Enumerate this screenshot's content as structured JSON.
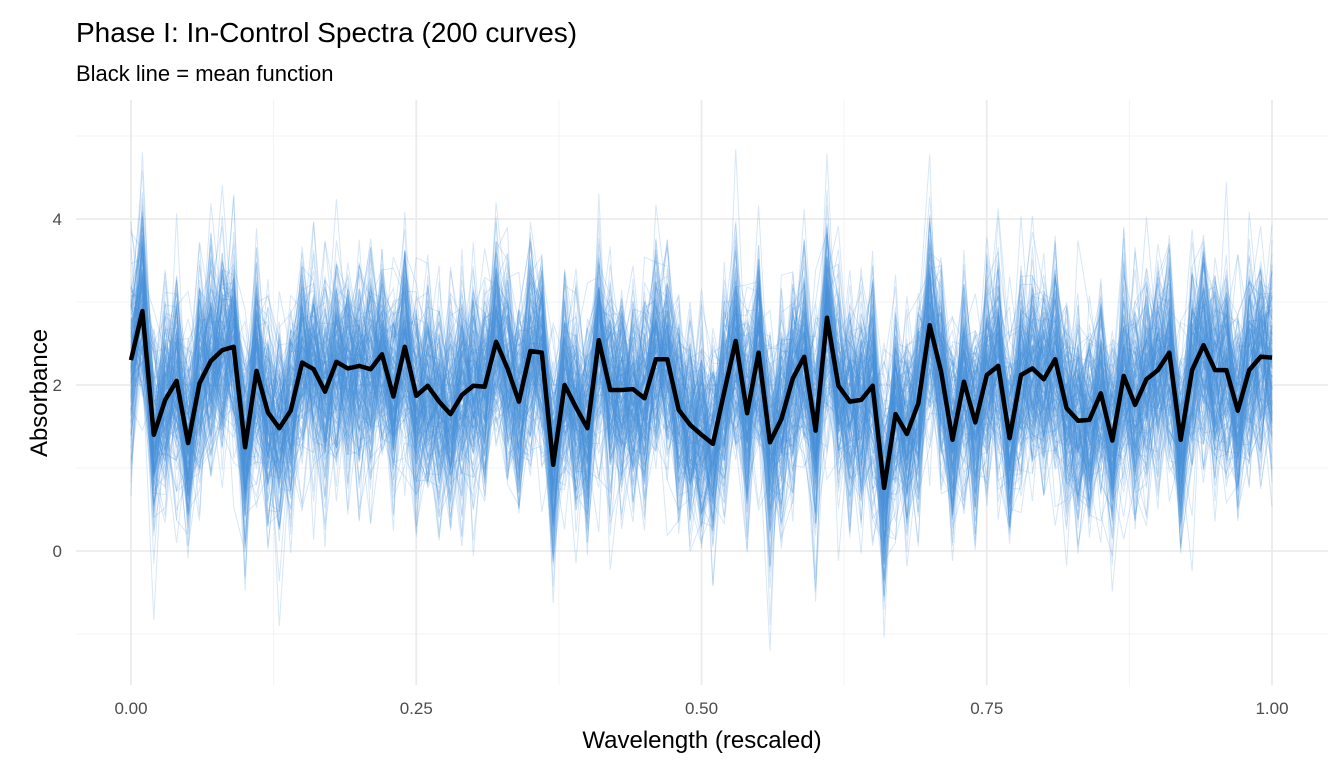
{
  "chart_data": {
    "type": "line",
    "title": "Phase I: In-Control Spectra (200 curves)",
    "subtitle": "Black line = mean function",
    "xlabel": "Wavelength (rescaled)",
    "ylabel": "Absorbance",
    "xlim": [
      0,
      1
    ],
    "ylim": [
      -1.6,
      5.3
    ],
    "x_ticks": [
      0,
      0.25,
      0.5,
      0.75,
      1
    ],
    "x_tick_labels": [
      "0.00",
      "0.25",
      "0.50",
      "0.75",
      "1.00"
    ],
    "y_ticks": [
      0,
      2,
      4
    ],
    "y_tick_labels": [
      "0",
      "2",
      "4"
    ],
    "grid": true,
    "legend": "none",
    "n_curves": 200,
    "curve_noise_sd": 0.6,
    "colors": {
      "curves": "#4a90d9",
      "mean": "#000000"
    },
    "x_step": 0.01,
    "mean": [
      2.3,
      2.89,
      1.4,
      1.82,
      2.05,
      1.3,
      2.02,
      2.29,
      2.42,
      2.46,
      1.25,
      2.17,
      1.67,
      1.48,
      1.69,
      2.27,
      2.19,
      1.92,
      2.28,
      2.2,
      2.23,
      2.19,
      2.37,
      1.86,
      2.46,
      1.87,
      1.99,
      1.8,
      1.65,
      1.88,
      1.99,
      1.98,
      2.52,
      2.2,
      1.8,
      2.41,
      2.39,
      1.04,
      2.0,
      1.73,
      1.48,
      2.54,
      1.94,
      1.94,
      1.95,
      1.84,
      2.31,
      2.31,
      1.7,
      1.52,
      1.4,
      1.29,
      1.92,
      2.53,
      1.66,
      2.39,
      1.31,
      1.59,
      2.08,
      2.34,
      1.45,
      2.81,
      1.99,
      1.8,
      1.82,
      1.99,
      0.76,
      1.65,
      1.41,
      1.78,
      2.72,
      2.16,
      1.34,
      2.04,
      1.55,
      2.12,
      2.23,
      1.36,
      2.12,
      2.2,
      2.07,
      2.31,
      1.72,
      1.57,
      1.58,
      1.9,
      1.33,
      2.11,
      1.76,
      2.07,
      2.18,
      2.39,
      1.34,
      2.18,
      2.48,
      2.18,
      2.18,
      1.69,
      2.18,
      2.34,
      2.33
    ]
  }
}
